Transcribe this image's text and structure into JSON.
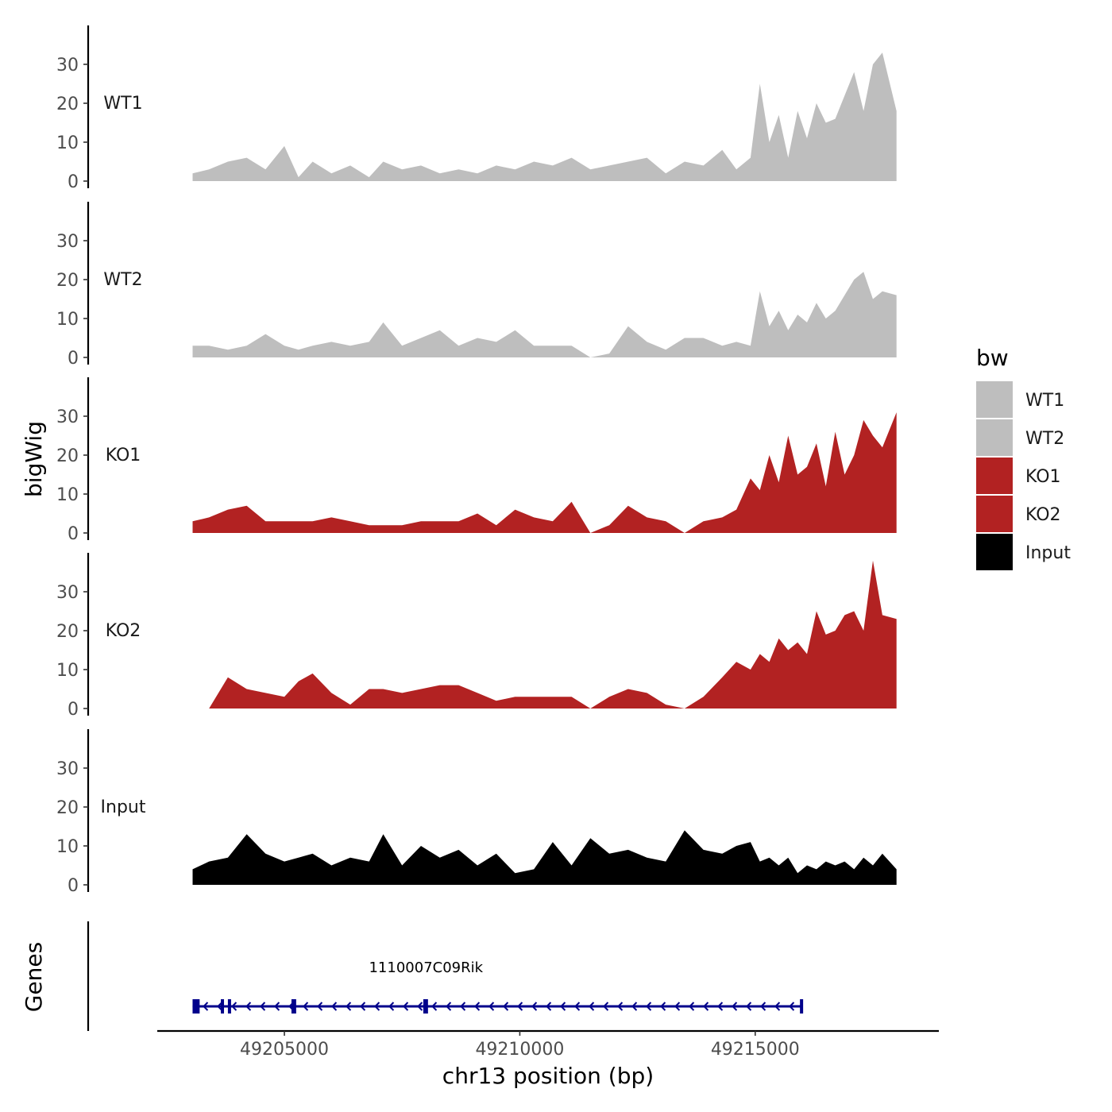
{
  "chart_data": {
    "type": "area",
    "title": "",
    "ylabel": "bigWig",
    "xlabel": "chr13 position (bp)",
    "xlim": [
      49202300,
      49218900
    ],
    "x_ticks": [
      49205000,
      49210000,
      49215000
    ],
    "x_tick_labels": [
      "49205000",
      "49210000",
      "49215000"
    ],
    "ylim": [
      0,
      40
    ],
    "y_ticks": [
      0,
      10,
      20,
      30
    ],
    "y_tick_labels": [
      "0",
      "10",
      "20",
      "30"
    ],
    "data_x_range": [
      49203050,
      49218000
    ],
    "tracks": [
      {
        "name": "WT1",
        "color": "#bebebe",
        "x": [
          49203050,
          49203400,
          49203800,
          49204200,
          49204600,
          49205000,
          49205300,
          49205600,
          49206000,
          49206400,
          49206800,
          49207100,
          49207500,
          49207900,
          49208300,
          49208700,
          49209100,
          49209500,
          49209900,
          49210300,
          49210700,
          49211100,
          49211500,
          49211900,
          49212300,
          49212700,
          49213100,
          49213500,
          49213900,
          49214300,
          49214600,
          49214900,
          49215100,
          49215300,
          49215500,
          49215700,
          49215900,
          49216100,
          49216300,
          49216500,
          49216700,
          49216900,
          49217100,
          49217300,
          49217500,
          49217700,
          49218000
        ],
        "values": [
          2,
          3,
          5,
          6,
          3,
          9,
          1,
          5,
          2,
          4,
          1,
          5,
          3,
          4,
          2,
          3,
          2,
          4,
          3,
          5,
          4,
          6,
          3,
          4,
          5,
          6,
          2,
          5,
          4,
          8,
          3,
          6,
          25,
          10,
          17,
          6,
          18,
          11,
          20,
          15,
          16,
          22,
          28,
          18,
          30,
          33,
          18
        ]
      },
      {
        "name": "WT2",
        "color": "#bebebe",
        "x": [
          49203050,
          49203400,
          49203800,
          49204200,
          49204600,
          49205000,
          49205300,
          49205600,
          49206000,
          49206400,
          49206800,
          49207100,
          49207500,
          49207900,
          49208300,
          49208700,
          49209100,
          49209500,
          49209900,
          49210300,
          49210700,
          49211100,
          49211500,
          49211900,
          49212300,
          49212700,
          49213100,
          49213500,
          49213900,
          49214300,
          49214600,
          49214900,
          49215100,
          49215300,
          49215500,
          49215700,
          49215900,
          49216100,
          49216300,
          49216500,
          49216700,
          49216900,
          49217100,
          49217300,
          49217500,
          49217700,
          49218000
        ],
        "values": [
          3,
          3,
          2,
          3,
          6,
          3,
          2,
          3,
          4,
          3,
          4,
          9,
          3,
          5,
          7,
          3,
          5,
          4,
          7,
          3,
          3,
          3,
          0,
          1,
          8,
          4,
          2,
          5,
          5,
          3,
          4,
          3,
          17,
          8,
          12,
          7,
          11,
          9,
          14,
          10,
          12,
          16,
          20,
          22,
          15,
          17,
          16
        ]
      },
      {
        "name": "KO1",
        "color": "#b22222",
        "x": [
          49203050,
          49203400,
          49203800,
          49204200,
          49204600,
          49205000,
          49205300,
          49205600,
          49206000,
          49206400,
          49206800,
          49207100,
          49207500,
          49207900,
          49208300,
          49208700,
          49209100,
          49209500,
          49209900,
          49210300,
          49210700,
          49211100,
          49211500,
          49211900,
          49212300,
          49212700,
          49213100,
          49213500,
          49213900,
          49214300,
          49214600,
          49214900,
          49215100,
          49215300,
          49215500,
          49215700,
          49215900,
          49216100,
          49216300,
          49216500,
          49216700,
          49216900,
          49217100,
          49217300,
          49217500,
          49217700,
          49218000
        ],
        "values": [
          3,
          4,
          6,
          7,
          3,
          3,
          3,
          3,
          4,
          3,
          2,
          2,
          2,
          3,
          3,
          3,
          5,
          2,
          6,
          4,
          3,
          8,
          0,
          2,
          7,
          4,
          3,
          0,
          3,
          4,
          6,
          14,
          11,
          20,
          13,
          25,
          15,
          17,
          23,
          12,
          26,
          15,
          20,
          29,
          25,
          22,
          31
        ]
      },
      {
        "name": "KO2",
        "color": "#b22222",
        "x": [
          49203050,
          49203400,
          49203800,
          49204200,
          49204600,
          49205000,
          49205300,
          49205600,
          49206000,
          49206400,
          49206800,
          49207100,
          49207500,
          49207900,
          49208300,
          49208700,
          49209100,
          49209500,
          49209900,
          49210300,
          49210700,
          49211100,
          49211500,
          49211900,
          49212300,
          49212700,
          49213100,
          49213500,
          49213900,
          49214300,
          49214600,
          49214900,
          49215100,
          49215300,
          49215500,
          49215700,
          49215900,
          49216100,
          49216300,
          49216500,
          49216700,
          49216900,
          49217100,
          49217300,
          49217500,
          49217700,
          49218000
        ],
        "values": [
          0,
          0,
          8,
          5,
          4,
          3,
          7,
          9,
          4,
          1,
          5,
          5,
          4,
          5,
          6,
          6,
          4,
          2,
          3,
          3,
          3,
          3,
          0,
          3,
          5,
          4,
          1,
          0,
          3,
          8,
          12,
          10,
          14,
          12,
          18,
          15,
          17,
          14,
          25,
          19,
          20,
          24,
          25,
          20,
          38,
          24,
          23
        ]
      },
      {
        "name": "Input",
        "color": "#000000",
        "x": [
          49203050,
          49203400,
          49203800,
          49204200,
          49204600,
          49205000,
          49205300,
          49205600,
          49206000,
          49206400,
          49206800,
          49207100,
          49207500,
          49207900,
          49208300,
          49208700,
          49209100,
          49209500,
          49209900,
          49210300,
          49210700,
          49211100,
          49211500,
          49211900,
          49212300,
          49212700,
          49213100,
          49213500,
          49213900,
          49214300,
          49214600,
          49214900,
          49215100,
          49215300,
          49215500,
          49215700,
          49215900,
          49216100,
          49216300,
          49216500,
          49216700,
          49216900,
          49217100,
          49217300,
          49217500,
          49217700,
          49218000
        ],
        "values": [
          4,
          6,
          7,
          13,
          8,
          6,
          7,
          8,
          5,
          7,
          6,
          13,
          5,
          10,
          7,
          9,
          5,
          8,
          3,
          4,
          11,
          5,
          12,
          8,
          9,
          7,
          6,
          14,
          9,
          8,
          10,
          11,
          6,
          7,
          5,
          7,
          3,
          5,
          4,
          6,
          5,
          6,
          4,
          7,
          5,
          8,
          4
        ]
      }
    ],
    "legend": {
      "title": "bw",
      "entries": [
        {
          "label": "WT1",
          "color": "#bebebe"
        },
        {
          "label": "WT2",
          "color": "#bebebe"
        },
        {
          "label": "KO1",
          "color": "#b22222"
        },
        {
          "label": "KO2",
          "color": "#b22222"
        },
        {
          "label": "Input",
          "color": "#000000"
        }
      ]
    },
    "genes_panel": {
      "title": "Genes",
      "color": "#00008b",
      "genes": [
        {
          "name": "1110007C09Rik",
          "strand": "-",
          "start": 49203050,
          "end": 49216000,
          "exons": [
            [
              49203050,
              49203200
            ],
            [
              49203650,
              49203700
            ],
            [
              49203800,
              49203850
            ],
            [
              49205150,
              49205250
            ],
            [
              49207950,
              49208050
            ],
            [
              49215950,
              49216000
            ]
          ]
        }
      ]
    }
  }
}
